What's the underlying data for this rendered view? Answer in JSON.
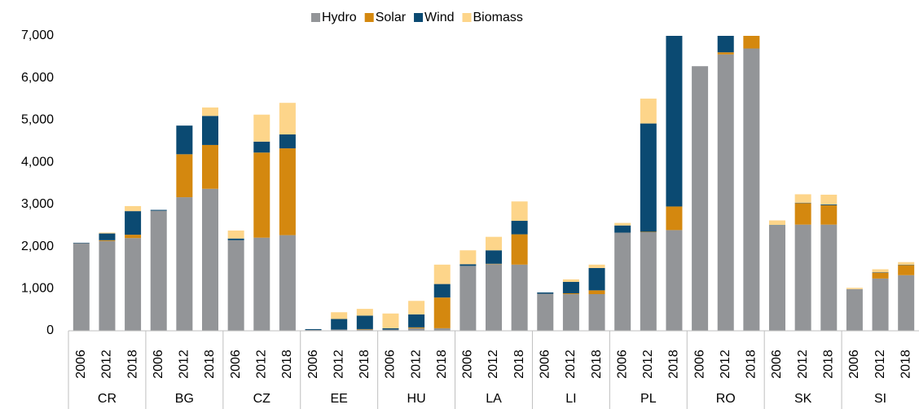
{
  "chart_data": {
    "type": "stacked_bar",
    "groups": [
      "CR",
      "BG",
      "CZ",
      "EE",
      "HU",
      "LA",
      "LI",
      "PL",
      "RO",
      "SK",
      "SI"
    ],
    "categories": [
      "2006",
      "2012",
      "2018",
      "2006",
      "2012",
      "2018",
      "2006",
      "2012",
      "2018",
      "2006",
      "2012",
      "2018",
      "2006",
      "2012",
      "2018",
      "2006",
      "2012",
      "2018",
      "2006",
      "2012",
      "2018",
      "2006",
      "2012",
      "2018",
      "2006",
      "2012",
      "2018",
      "2006",
      "2012",
      "2018",
      "2006",
      "2012",
      "2018"
    ],
    "series": [
      {
        "name": "Hydro",
        "color": "#939598",
        "values": [
          2080,
          2130,
          2200,
          2850,
          3170,
          3370,
          2150,
          2210,
          2270,
          20,
          30,
          30,
          30,
          60,
          60,
          1540,
          1580,
          1570,
          880,
          870,
          870,
          2330,
          2340,
          2390,
          6280,
          6560,
          6700,
          2500,
          2520,
          2520,
          990,
          1240,
          1320
        ]
      },
      {
        "name": "Solar",
        "color": "#d4880f",
        "values": [
          0,
          20,
          80,
          0,
          1020,
          1040,
          0,
          2020,
          2060,
          0,
          0,
          10,
          0,
          20,
          730,
          0,
          10,
          720,
          0,
          20,
          90,
          0,
          10,
          560,
          0,
          50,
          300,
          0,
          510,
          460,
          0,
          140,
          240
        ]
      },
      {
        "name": "Wind",
        "color": "#0b4a72",
        "values": [
          10,
          160,
          560,
          20,
          680,
          690,
          40,
          260,
          330,
          20,
          250,
          320,
          30,
          310,
          320,
          40,
          320,
          320,
          30,
          270,
          530,
          170,
          2570,
          4050,
          0,
          390,
          0,
          10,
          10,
          20,
          0,
          10,
          10
        ]
      },
      {
        "name": "Biomass",
        "color": "#fdd58a",
        "values": [
          0,
          20,
          120,
          0,
          0,
          200,
          190,
          640,
          750,
          0,
          160,
          160,
          350,
          320,
          460,
          330,
          320,
          460,
          0,
          60,
          80,
          60,
          590,
          0,
          0,
          0,
          0,
          110,
          200,
          230,
          30,
          70,
          60
        ]
      }
    ],
    "ylim": [
      0,
      7000
    ],
    "yticks": [
      0,
      {
        "value": 1000,
        "label": "1,000"
      },
      {
        "value": 2000,
        "label": "2,000"
      },
      {
        "value": 3000,
        "label": "3,000"
      },
      {
        "value": 4000,
        "label": "4,000"
      },
      {
        "value": 5000,
        "label": "5,000"
      },
      {
        "value": 6000,
        "label": "6,000"
      },
      {
        "value": 7000,
        "label": "7,000"
      }
    ],
    "legend": "top"
  }
}
